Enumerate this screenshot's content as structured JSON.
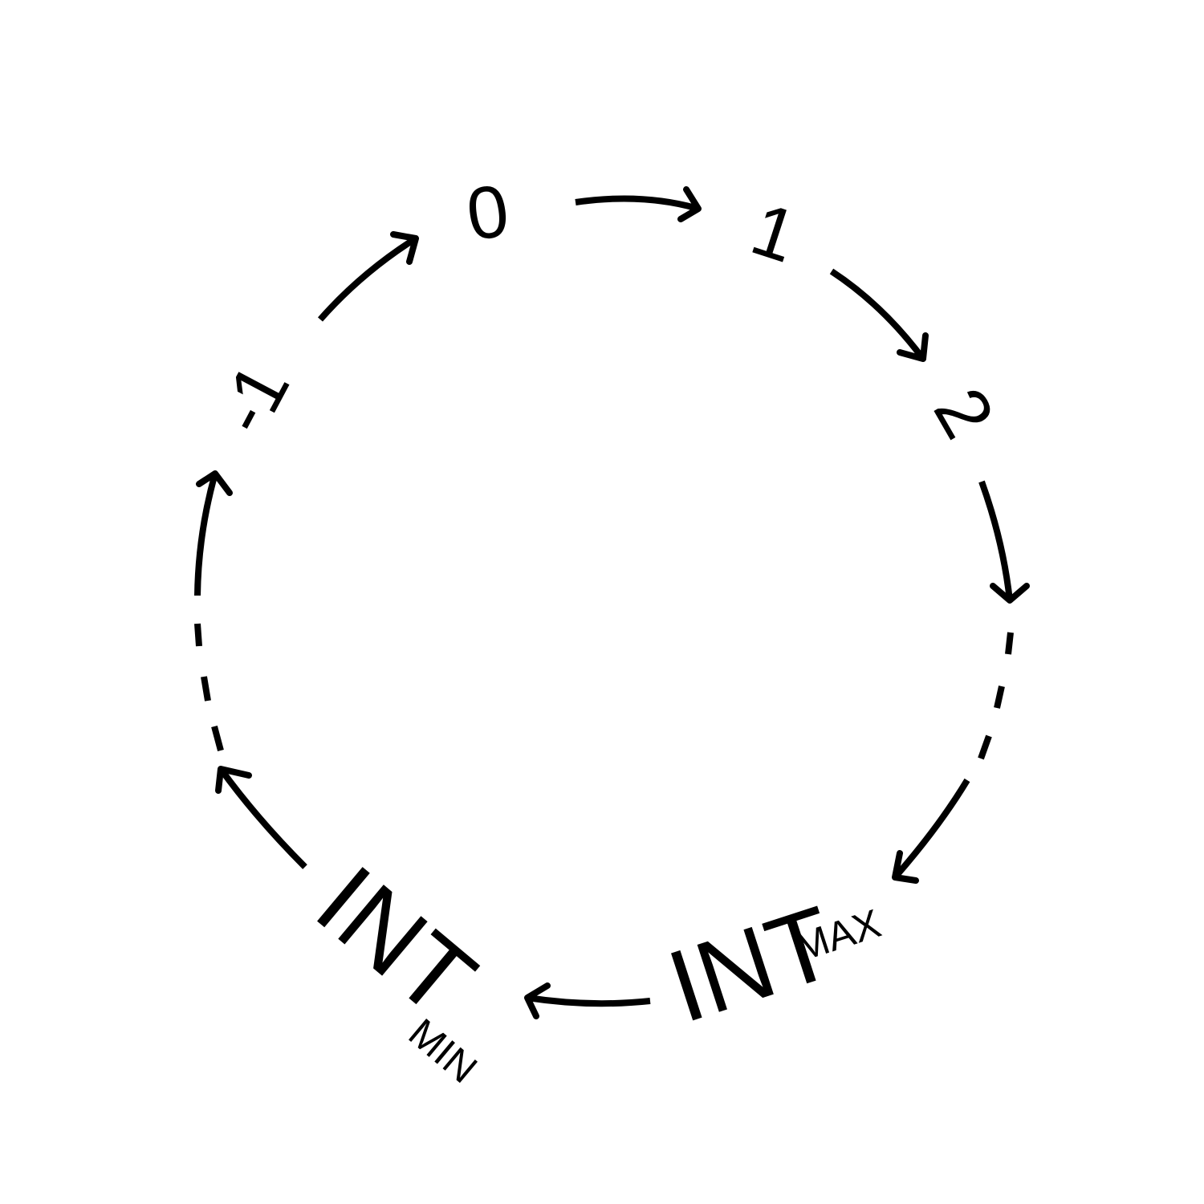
{
  "nodes": [
    {
      "id": "zero",
      "text": "0"
    },
    {
      "id": "one",
      "text": "1"
    },
    {
      "id": "two",
      "text": "2"
    },
    {
      "id": "neg-one",
      "text": "-1"
    },
    {
      "id": "int-max",
      "text": "INT",
      "subscript": "MAX"
    },
    {
      "id": "int-min",
      "text": "INT",
      "subscript": "MIN"
    }
  ],
  "edges": [
    {
      "from": "zero",
      "to": "one"
    },
    {
      "from": "one",
      "to": "two"
    },
    {
      "from": "two",
      "to": "int-max",
      "continuation": "dashed"
    },
    {
      "from": "int-max",
      "to": "int-min"
    },
    {
      "from": "int-min",
      "to": "neg-one",
      "continuation": "dashed"
    },
    {
      "from": "neg-one",
      "to": "zero"
    }
  ],
  "colors": {
    "stroke": "#000000",
    "text": "#000000",
    "background": "#ffffff"
  }
}
